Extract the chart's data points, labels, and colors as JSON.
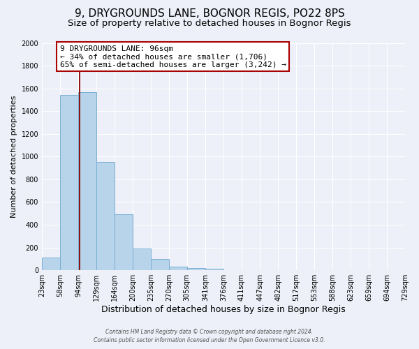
{
  "title": "9, DRYGROUNDS LANE, BOGNOR REGIS, PO22 8PS",
  "subtitle": "Size of property relative to detached houses in Bognor Regis",
  "xlabel": "Distribution of detached houses by size in Bognor Regis",
  "ylabel": "Number of detached properties",
  "bar_edges": [
    23,
    58,
    94,
    129,
    164,
    200,
    235,
    270,
    305,
    341,
    376,
    411,
    447,
    482,
    517,
    553,
    588,
    623,
    659,
    694,
    729
  ],
  "bar_heights": [
    110,
    1540,
    1570,
    950,
    490,
    190,
    100,
    35,
    20,
    15,
    0,
    0,
    0,
    0,
    0,
    0,
    0,
    0,
    0,
    0
  ],
  "bar_color": "#b8d4ea",
  "bar_edge_color": "#7aafd4",
  "red_line_x": 96,
  "ylim": [
    0,
    2000
  ],
  "yticks": [
    0,
    200,
    400,
    600,
    800,
    1000,
    1200,
    1400,
    1600,
    1800,
    2000
  ],
  "ann_line1": "9 DRYGROUNDS LANE: 96sqm",
  "ann_line2": "← 34% of detached houses are smaller (1,706)",
  "ann_line3": "65% of semi-detached houses are larger (3,242) →",
  "footer_line1": "Contains HM Land Registry data © Crown copyright and database right 2024.",
  "footer_line2": "Contains public sector information licensed under the Open Government Licence v3.0.",
  "background_color": "#edf0f8",
  "plot_bg_color": "#edf0f8",
  "title_fontsize": 11,
  "subtitle_fontsize": 9.5,
  "xlabel_fontsize": 9,
  "ylabel_fontsize": 8,
  "tick_fontsize": 7,
  "ann_fontsize": 8,
  "footer_fontsize": 5.5
}
